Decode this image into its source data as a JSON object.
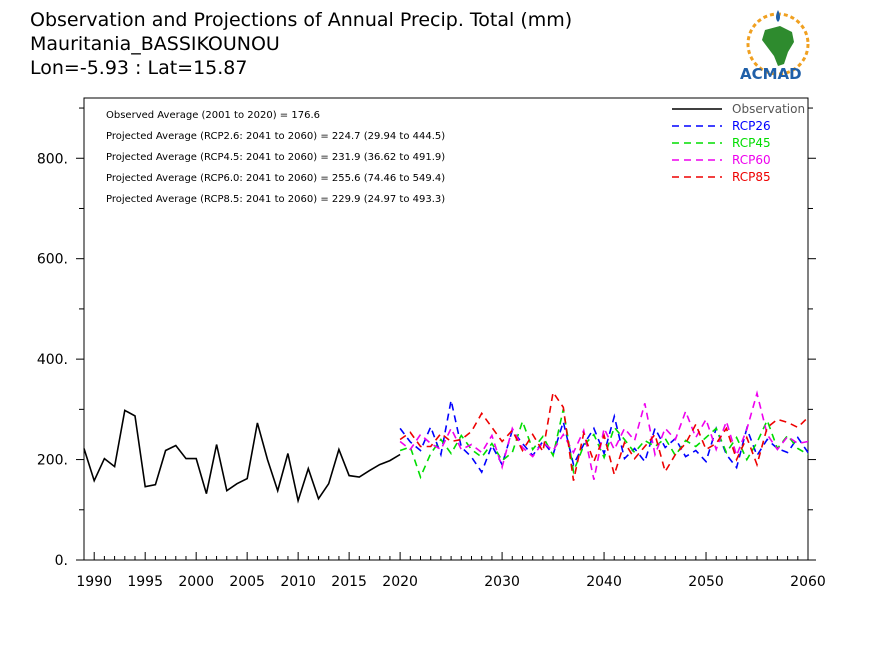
{
  "header": {
    "title": "Observation and Projections of Annual Precip. Total (mm)",
    "station": "Mauritania_BASSIKOUNOU",
    "coords": "Lon=-5.93 : Lat=15.87"
  },
  "logo": {
    "text": "ACMAD"
  },
  "colors": {
    "observation": "#000000",
    "rcp26": "#0000ff",
    "rcp45": "#00dd00",
    "rcp60": "#ee00ee",
    "rcp85": "#ee0000"
  },
  "chart_data": {
    "type": "line",
    "xlim": [
      1989,
      2060
    ],
    "ylim": [
      0,
      920
    ],
    "x_ticks": [
      1990,
      1995,
      2000,
      2005,
      2010,
      2015,
      2020,
      2030,
      2040,
      2050,
      2060
    ],
    "x_tick_labels": [
      "1990",
      "1995",
      "2000",
      "2005",
      "2010",
      "2015",
      "2020",
      "2030",
      "2040",
      "2050",
      "2060"
    ],
    "y_ticks": [
      0,
      200,
      400,
      600,
      800
    ],
    "y_tick_labels": [
      "0.",
      "200.",
      "400.",
      "600.",
      "800."
    ],
    "annotations": [
      "Observed Average (2001 to 2020) = 176.6",
      "Projected Average (RCP2.6: 2041 to 2060) = 224.7 (29.94 to 444.5)",
      "Projected Average (RCP4.5: 2041 to 2060) = 231.9 (36.62 to 491.9)",
      "Projected Average (RCP6.0: 2041 to 2060) = 255.6 (74.46 to 549.4)",
      "Projected Average (RCP8.5: 2041 to 2060) = 229.9 (24.97 to 493.3)"
    ],
    "legend_position": "top-right",
    "series": [
      {
        "name": "Observation",
        "style": "solid",
        "color_key": "observation",
        "x": [
          1989,
          1990,
          1991,
          1992,
          1993,
          1994,
          1995,
          1996,
          1997,
          1998,
          1999,
          2000,
          2001,
          2002,
          2003,
          2004,
          2005,
          2006,
          2007,
          2008,
          2009,
          2010,
          2011,
          2012,
          2013,
          2014,
          2015,
          2016,
          2017,
          2018,
          2019,
          2020
        ],
        "values": [
          222,
          158,
          202,
          186,
          298,
          287,
          146,
          150,
          218,
          228,
          202,
          202,
          132,
          230,
          138,
          152,
          162,
          273,
          200,
          138,
          212,
          118,
          182,
          122,
          152,
          220,
          168,
          165,
          178,
          190,
          198,
          210
        ]
      },
      {
        "name": "RCP26",
        "style": "dashed",
        "color_key": "rcp26",
        "x": [
          2020,
          2021,
          2022,
          2023,
          2024,
          2025,
          2026,
          2027,
          2028,
          2029,
          2030,
          2031,
          2032,
          2033,
          2034,
          2035,
          2036,
          2037,
          2038,
          2039,
          2040,
          2041,
          2042,
          2043,
          2044,
          2045,
          2046,
          2047,
          2048,
          2049,
          2050,
          2051,
          2052,
          2053,
          2054,
          2055,
          2056,
          2057,
          2058,
          2059,
          2060
        ],
        "values": [
          262,
          235,
          218,
          265,
          210,
          318,
          225,
          205,
          175,
          228,
          190,
          258,
          232,
          208,
          236,
          210,
          275,
          190,
          230,
          262,
          212,
          286,
          202,
          222,
          196,
          262,
          224,
          242,
          206,
          218,
          196,
          262,
          210,
          184,
          262,
          208,
          240,
          222,
          214,
          244,
          214
        ]
      },
      {
        "name": "RCP45",
        "style": "dashed",
        "color_key": "rcp45",
        "x": [
          2020,
          2021,
          2022,
          2023,
          2024,
          2025,
          2026,
          2027,
          2028,
          2029,
          2030,
          2031,
          2032,
          2033,
          2034,
          2035,
          2036,
          2037,
          2038,
          2039,
          2040,
          2041,
          2042,
          2043,
          2044,
          2045,
          2046,
          2047,
          2048,
          2049,
          2050,
          2051,
          2052,
          2053,
          2054,
          2055,
          2056,
          2057,
          2058,
          2059,
          2060
        ],
        "values": [
          218,
          225,
          165,
          212,
          240,
          212,
          248,
          220,
          205,
          232,
          198,
          214,
          276,
          220,
          246,
          208,
          300,
          176,
          228,
          250,
          204,
          264,
          240,
          214,
          238,
          226,
          242,
          208,
          238,
          226,
          244,
          262,
          214,
          244,
          200,
          234,
          278,
          222,
          248,
          222,
          210
        ]
      },
      {
        "name": "RCP60",
        "style": "dashed",
        "color_key": "rcp60",
        "x": [
          2020,
          2021,
          2022,
          2023,
          2024,
          2025,
          2026,
          2027,
          2028,
          2029,
          2030,
          2031,
          2032,
          2033,
          2034,
          2035,
          2036,
          2037,
          2038,
          2039,
          2040,
          2041,
          2042,
          2043,
          2044,
          2045,
          2046,
          2047,
          2048,
          2049,
          2050,
          2051,
          2052,
          2053,
          2054,
          2055,
          2056,
          2057,
          2058,
          2059,
          2060
        ],
        "values": [
          236,
          220,
          250,
          232,
          220,
          262,
          220,
          230,
          214,
          248,
          185,
          262,
          224,
          206,
          234,
          218,
          250,
          214,
          258,
          160,
          262,
          220,
          262,
          238,
          312,
          210,
          262,
          240,
          296,
          244,
          280,
          220,
          276,
          208,
          260,
          332,
          250,
          220,
          246,
          232,
          236
        ]
      },
      {
        "name": "RCP85",
        "style": "dashed",
        "color_key": "rcp85",
        "x": [
          2020,
          2021,
          2022,
          2023,
          2024,
          2025,
          2026,
          2027,
          2028,
          2029,
          2030,
          2031,
          2032,
          2033,
          2034,
          2035,
          2036,
          2037,
          2038,
          2039,
          2040,
          2041,
          2042,
          2043,
          2044,
          2045,
          2046,
          2047,
          2048,
          2049,
          2050,
          2051,
          2052,
          2053,
          2054,
          2055,
          2056,
          2057,
          2058,
          2059,
          2060
        ],
        "values": [
          240,
          254,
          226,
          226,
          252,
          236,
          240,
          256,
          292,
          264,
          236,
          258,
          218,
          250,
          216,
          334,
          304,
          158,
          252,
          196,
          248,
          170,
          234,
          202,
          226,
          250,
          176,
          210,
          232,
          270,
          220,
          232,
          262,
          200,
          244,
          190,
          264,
          280,
          274,
          264,
          284
        ]
      }
    ]
  }
}
